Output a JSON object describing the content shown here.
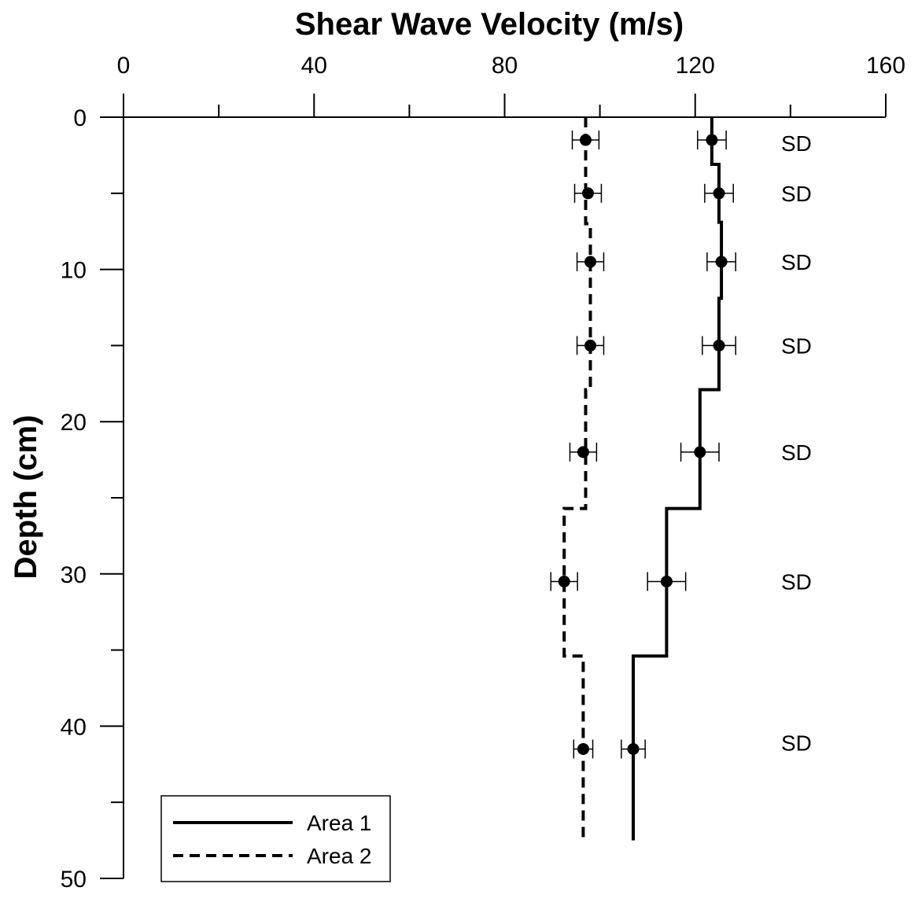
{
  "chart_data": {
    "type": "line",
    "title": "Shear Wave Velocity (m/s)",
    "xlabel": "Shear Wave Velocity (m/s)",
    "ylabel": "Depth (cm)",
    "xlim": [
      0,
      160
    ],
    "ylim": [
      0,
      50
    ],
    "y_inverted": true,
    "x_axis_position": "top",
    "x_ticks": [
      0,
      40,
      80,
      120,
      160
    ],
    "x_tick_labels": [
      "0",
      "40",
      "80",
      "120",
      "160"
    ],
    "x_minor_ticks": [
      20,
      60,
      100,
      140
    ],
    "y_ticks": [
      0,
      10,
      20,
      30,
      40,
      50
    ],
    "y_tick_labels": [
      "0",
      "10",
      "20",
      "30",
      "40",
      "50"
    ],
    "y_minor_ticks": [
      5,
      15,
      25,
      35,
      45
    ],
    "grid": false,
    "legend_position": "bottom-left",
    "series": [
      {
        "name": "Area 1",
        "line_style": "solid",
        "profile": [
          [
            123.5,
            0
          ],
          [
            123.5,
            3.1
          ],
          [
            125,
            3.1
          ],
          [
            125,
            6.9
          ],
          [
            125.5,
            6.9
          ],
          [
            125.5,
            11.9
          ],
          [
            125,
            11.9
          ],
          [
            125,
            17.9
          ],
          [
            121,
            17.9
          ],
          [
            121,
            25.7
          ],
          [
            114,
            25.7
          ],
          [
            114,
            35.4
          ],
          [
            107,
            35.4
          ],
          [
            107,
            47.5
          ]
        ],
        "points": [
          {
            "x": 123.5,
            "y": 1.5,
            "err": 3
          },
          {
            "x": 125,
            "y": 5,
            "err": 3
          },
          {
            "x": 125.5,
            "y": 9.5,
            "err": 3
          },
          {
            "x": 125,
            "y": 15,
            "err": 3.5
          },
          {
            "x": 121,
            "y": 22,
            "err": 4
          },
          {
            "x": 114,
            "y": 30.5,
            "err": 4
          },
          {
            "x": 107,
            "y": 41.5,
            "err": 2.5
          }
        ]
      },
      {
        "name": "Area 2",
        "line_style": "dashed",
        "profile": [
          [
            97,
            0
          ],
          [
            97,
            7
          ],
          [
            98,
            7
          ],
          [
            98,
            17.9
          ],
          [
            97,
            17.9
          ],
          [
            97,
            25.7
          ],
          [
            92.5,
            25.7
          ],
          [
            92.5,
            35.4
          ],
          [
            96.5,
            35.4
          ],
          [
            96.5,
            47.5
          ]
        ],
        "points": [
          {
            "x": 97,
            "y": 1.5,
            "err": 2.8
          },
          {
            "x": 97.5,
            "y": 5,
            "err": 2.8
          },
          {
            "x": 98,
            "y": 9.5,
            "err": 2.8
          },
          {
            "x": 98,
            "y": 15,
            "err": 2.8
          },
          {
            "x": 96.5,
            "y": 22,
            "err": 2.8
          },
          {
            "x": 92.5,
            "y": 30.5,
            "err": 2.8
          },
          {
            "x": 96.5,
            "y": 41.5,
            "err": 2
          }
        ]
      }
    ],
    "annotations": [
      {
        "text": "SD",
        "y": 1.7
      },
      {
        "text": "SD",
        "y": 5
      },
      {
        "text": "SD",
        "y": 9.5
      },
      {
        "text": "SD",
        "y": 15
      },
      {
        "text": "SD",
        "y": 22
      },
      {
        "text": "SD",
        "y": 30.5
      },
      {
        "text": "SD",
        "y": 41.1
      }
    ],
    "legend": [
      {
        "label": "Area 1",
        "line_style": "solid"
      },
      {
        "label": "Area 2",
        "line_style": "dashed"
      }
    ]
  }
}
